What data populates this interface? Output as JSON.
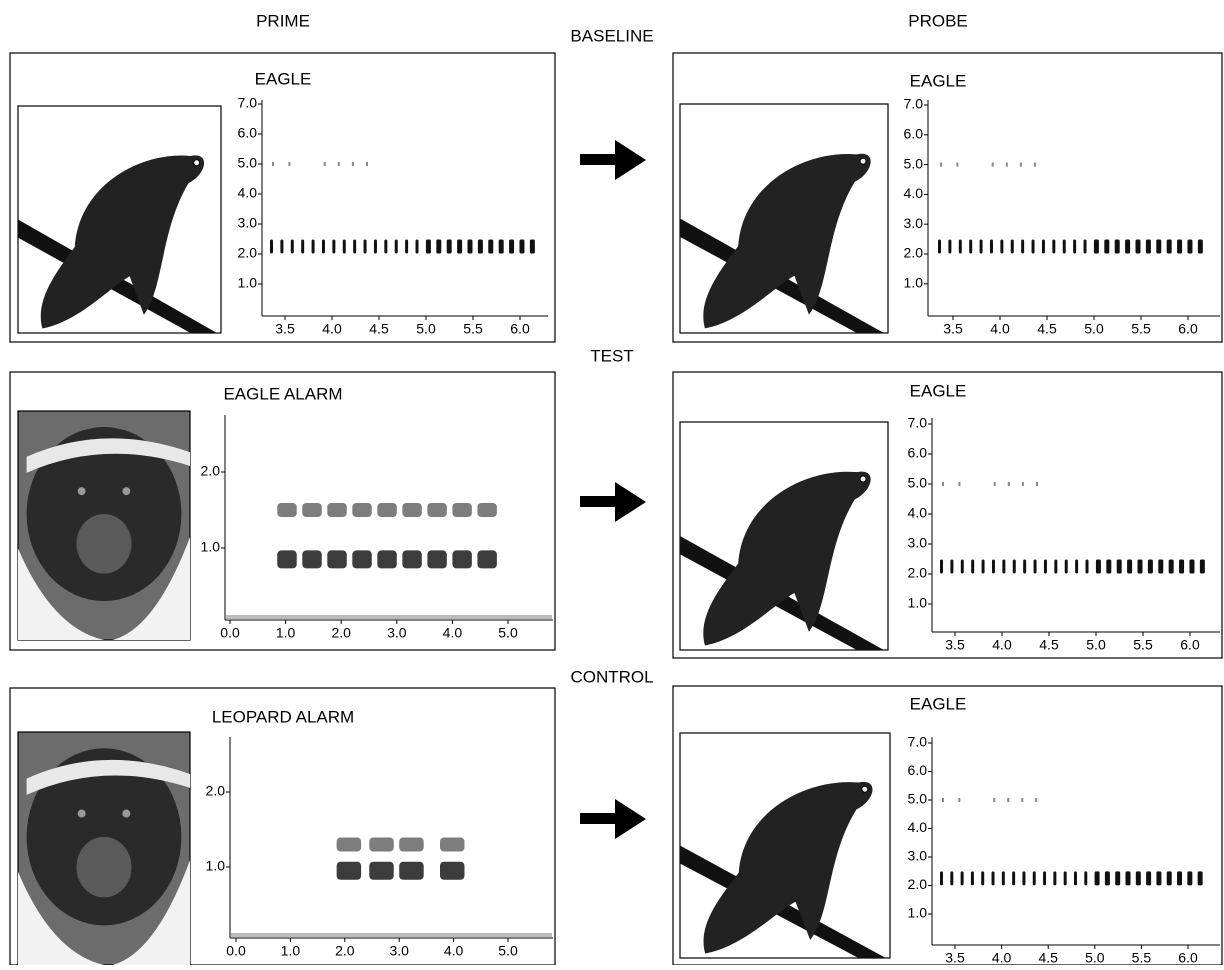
{
  "header": {
    "prime": "PRIME",
    "probe": "PROBE"
  },
  "sections": [
    "BASELINE",
    "TEST",
    "CONTROL"
  ],
  "panels": [
    {
      "title": "EAGLE",
      "yticks": [
        "7.0",
        "6.0",
        "5.0",
        "4.0",
        "3.0",
        "2.0",
        "1.0"
      ],
      "xticks": [
        "3.5",
        "4.0",
        "4.5",
        "5.0",
        "5.5",
        "6.0"
      ]
    },
    {
      "title": "EAGLE",
      "yticks": [
        "7.0",
        "6.0",
        "5.0",
        "4.0",
        "3.0",
        "2.0",
        "1.0"
      ],
      "xticks": [
        "3.5",
        "4.0",
        "4.5",
        "5.0",
        "5.5",
        "6.0"
      ]
    },
    {
      "title": "EAGLE ALARM",
      "yticks": [
        "2.0",
        "1.0"
      ],
      "xticks": [
        "0.0",
        "1.0",
        "2.0",
        "3.0",
        "4.0",
        "5.0"
      ]
    },
    {
      "title": "EAGLE",
      "yticks": [
        "7.0",
        "6.0",
        "5.0",
        "4.0",
        "3.0",
        "2.0",
        "1.0"
      ],
      "xticks": [
        "3.5",
        "4.0",
        "4.5",
        "5.0",
        "5.5",
        "6.0"
      ]
    },
    {
      "title": "LEOPARD ALARM",
      "yticks": [
        "2.0",
        "1.0"
      ],
      "xticks": [
        "0.0",
        "1.0",
        "2.0",
        "3.0",
        "4.0",
        "5.0"
      ]
    },
    {
      "title": "EAGLE",
      "yticks": [
        "7.0",
        "6.0",
        "5.0",
        "4.0",
        "3.0",
        "2.0",
        "1.0"
      ],
      "xticks": [
        "3.5",
        "4.0",
        "4.5",
        "5.0",
        "5.5",
        "6.0"
      ]
    }
  ]
}
